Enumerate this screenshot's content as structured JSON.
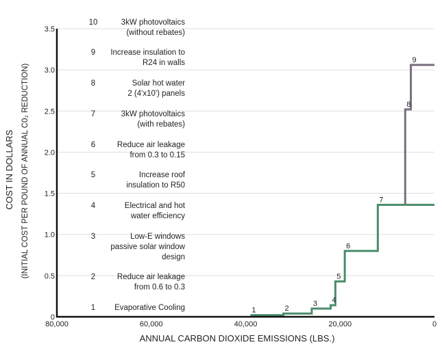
{
  "chart_data": {
    "type": "line",
    "xlabel": "ANNUAL CARBON DIOXIDE EMISSIONS (LBS.)",
    "ylabel": "COST IN DOLLARS",
    "ylabel_sub": "(INITIAL COST PER POUND OF ANNUAL C0₂ REDUCTION)",
    "xlim": [
      80000,
      0
    ],
    "ylim": [
      0,
      3.5
    ],
    "x_ticks": [
      {
        "value": 80000,
        "label": "80,000"
      },
      {
        "value": 60000,
        "label": "60,000"
      },
      {
        "value": 40000,
        "label": "40,000"
      },
      {
        "value": 20000,
        "label": "20,000"
      },
      {
        "value": 0,
        "label": "0"
      }
    ],
    "y_ticks": [
      {
        "value": 0,
        "label": "0"
      },
      {
        "value": 0.5,
        "label": "0.5"
      },
      {
        "value": 1.0,
        "label": "1.0"
      },
      {
        "value": 1.5,
        "label": "1.5"
      },
      {
        "value": 2.0,
        "label": "2.0"
      },
      {
        "value": 2.5,
        "label": "2.5"
      },
      {
        "value": 3.0,
        "label": "3.0"
      },
      {
        "value": 3.5,
        "label": "3.5"
      }
    ],
    "grid": "horizontal",
    "legend": [
      {
        "num": "10",
        "lines": [
          "3kW photovoltaics",
          "(without rebates)"
        ]
      },
      {
        "num": "9",
        "lines": [
          "Increase insulation to",
          "R24 in walls"
        ]
      },
      {
        "num": "8",
        "lines": [
          "Solar hot water",
          "2 (4'x10') panels"
        ]
      },
      {
        "num": "7",
        "lines": [
          "3kW photovoltaics",
          "(with rebates)"
        ]
      },
      {
        "num": "6",
        "lines": [
          "Reduce air leakage",
          "from 0.3 to 0.15"
        ]
      },
      {
        "num": "5",
        "lines": [
          "Increase roof",
          "insulation to R50"
        ]
      },
      {
        "num": "4",
        "lines": [
          "Electrical and hot",
          "water efficiency"
        ]
      },
      {
        "num": "3",
        "lines": [
          "Low-E windows",
          "passive solar window",
          "design"
        ]
      },
      {
        "num": "2",
        "lines": [
          "Reduce air leakage",
          "from 0.6 to 0.3"
        ]
      },
      {
        "num": "1",
        "lines": [
          "Evaporative Cooling"
        ]
      }
    ],
    "series": [
      {
        "color": "#4a8c6a",
        "steps": [
          {
            "label": "1",
            "x_start": 39000,
            "x_end": 32000,
            "y": 0.02
          },
          {
            "label": "2",
            "x_start": 32000,
            "x_end": 26000,
            "y": 0.04
          },
          {
            "label": "3",
            "x_start": 26000,
            "x_end": 22000,
            "y": 0.1
          },
          {
            "label": "4",
            "x_start": 22000,
            "x_end": 21000,
            "y": 0.14
          },
          {
            "label": "5",
            "x_start": 21000,
            "x_end": 19000,
            "y": 0.43
          },
          {
            "label": "6",
            "x_start": 19000,
            "x_end": 12000,
            "y": 0.8
          },
          {
            "label": "7",
            "x_start": 12000,
            "x_end": 0,
            "y": 1.36
          }
        ]
      },
      {
        "color": "#7a6e80",
        "steps": [
          {
            "label": "8",
            "x_start": 6200,
            "x_end": 5000,
            "y": 2.52
          },
          {
            "label": "9",
            "x_start": 5000,
            "x_end": 0,
            "y": 3.06
          }
        ]
      }
    ]
  }
}
